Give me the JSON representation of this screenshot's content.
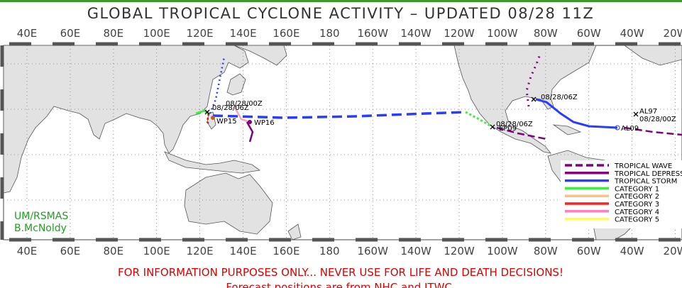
{
  "header": {
    "title": "GLOBAL TROPICAL CYCLONE ACTIVITY – UPDATED 08/28 11Z"
  },
  "longitudes": [
    "40E",
    "60E",
    "80E",
    "100E",
    "120E",
    "140E",
    "160E",
    "180",
    "160W",
    "140W",
    "120W",
    "100W",
    "80W",
    "60W",
    "40W",
    "20W"
  ],
  "storm_labels": [
    "WP15",
    "WP16",
    "EP09",
    "AL09",
    "AL97"
  ],
  "timestamps": [
    "08/28/06Z",
    "08/28/00Z",
    "08/28/06Z",
    "08/28/06Z",
    "08/28/00Z"
  ],
  "legend": [
    "TROPICAL WAVE",
    "TROPICAL DEPRESSION",
    "TROPICAL STORM",
    "CATEGORY 1",
    "CATEGORY 2",
    "CATEGORY 3",
    "CATEGORY 4",
    "CATEGORY 5"
  ],
  "credit": [
    "UM/RSMAS",
    "B.McNoldy"
  ],
  "footer": [
    "FOR INFORMATION PURPOSES ONLY... NEVER USE FOR LIFE AND DEATH DECISIONS!",
    "Forecast positions are from NHC and JTWC."
  ]
}
